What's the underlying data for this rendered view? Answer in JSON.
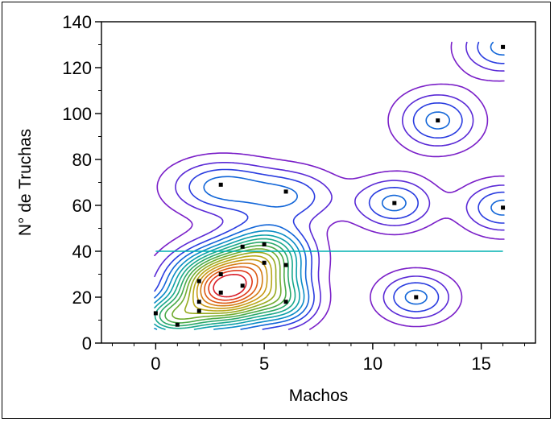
{
  "chart_data": {
    "type": "contour",
    "xlabel": "Machos",
    "ylabel": "N° de Truchas",
    "xlim": [
      -2.5,
      17.5
    ],
    "ylim": [
      0,
      140
    ],
    "x_ticks": [
      0,
      5,
      10,
      15
    ],
    "y_ticks": [
      0,
      20,
      40,
      60,
      80,
      100,
      120,
      140
    ],
    "grid": false,
    "legend": "none",
    "points": [
      {
        "x": 0,
        "y": 13
      },
      {
        "x": 1,
        "y": 8
      },
      {
        "x": 2,
        "y": 14
      },
      {
        "x": 2,
        "y": 18
      },
      {
        "x": 2,
        "y": 27
      },
      {
        "x": 3,
        "y": 22
      },
      {
        "x": 3,
        "y": 30
      },
      {
        "x": 3,
        "y": 69
      },
      {
        "x": 4,
        "y": 25
      },
      {
        "x": 4,
        "y": 42
      },
      {
        "x": 5,
        "y": 35
      },
      {
        "x": 5,
        "y": 43
      },
      {
        "x": 6,
        "y": 18
      },
      {
        "x": 6,
        "y": 34
      },
      {
        "x": 6,
        "y": 66
      },
      {
        "x": 11,
        "y": 61
      },
      {
        "x": 12,
        "y": 20
      },
      {
        "x": 13,
        "y": 97
      },
      {
        "x": 16,
        "y": 59
      },
      {
        "x": 16,
        "y": 129
      }
    ],
    "reference_line": {
      "y": 40,
      "x_from": 0,
      "x_to": 16,
      "color": "#00b0b0"
    },
    "density_peaks": [
      {
        "x": 3.2,
        "y": 24,
        "sx": 1.55,
        "sy": 10.5,
        "w": 1.0
      },
      {
        "x": 5.2,
        "y": 38,
        "sx": 1.3,
        "sy": 9,
        "w": 0.45
      },
      {
        "x": 0.7,
        "y": 11,
        "sx": 1.1,
        "sy": 6,
        "w": 0.42
      },
      {
        "x": 6.0,
        "y": 18,
        "sx": 1.0,
        "sy": 7,
        "w": 0.28
      },
      {
        "x": 3.0,
        "y": 68,
        "sx": 1.6,
        "sy": 8,
        "w": 0.24
      },
      {
        "x": 6.2,
        "y": 64,
        "sx": 1.5,
        "sy": 8,
        "w": 0.2
      },
      {
        "x": 11.0,
        "y": 61,
        "sx": 1.2,
        "sy": 7.5,
        "w": 0.24
      },
      {
        "x": 12.0,
        "y": 20,
        "sx": 1.15,
        "sy": 7,
        "w": 0.24
      },
      {
        "x": 13.0,
        "y": 97,
        "sx": 1.25,
        "sy": 8.5,
        "w": 0.24
      },
      {
        "x": 16.0,
        "y": 59,
        "sx": 1.25,
        "sy": 7.5,
        "w": 0.24
      },
      {
        "x": 16.0,
        "y": 129,
        "sx": 1.3,
        "sy": 8,
        "w": 0.24
      }
    ],
    "contour_colors": [
      "#7a1fc8",
      "#5a2ad6",
      "#2a3de0",
      "#1266d8",
      "#0b8cc6",
      "#0ea0a8",
      "#1aa88a",
      "#2aa86a",
      "#4aaa48",
      "#70ac30",
      "#98aa20",
      "#b8a81a",
      "#c89a16",
      "#d47c14",
      "#dc5a14",
      "#e03a1a",
      "#d81e2a"
    ]
  }
}
